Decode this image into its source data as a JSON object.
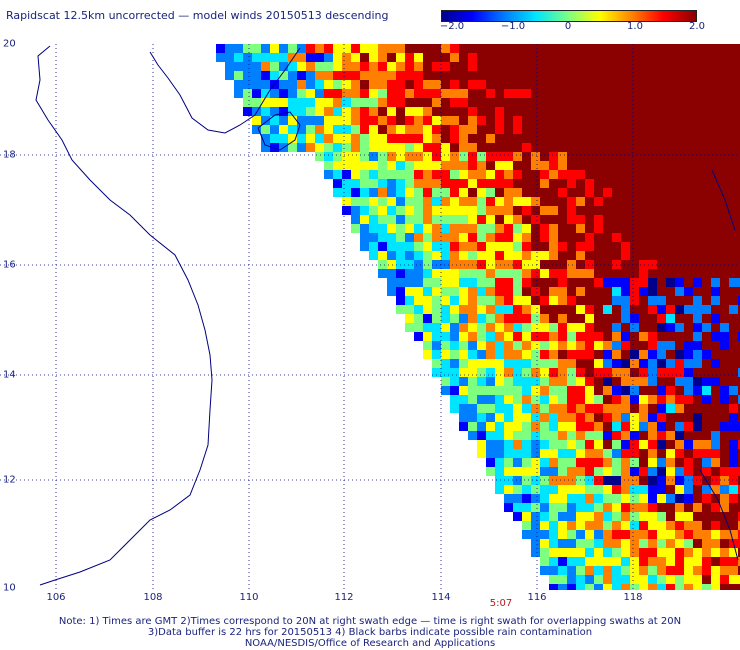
{
  "title": "Rapidscat 12.5km uncorrected — model winds 20150513 descending",
  "colorbar": {
    "ticks": [
      {
        "label": "−2.0",
        "value": -2.0
      },
      {
        "label": "−1.0",
        "value": -1.0
      },
      {
        "label": "0",
        "value": 0
      },
      {
        "label": "1.0",
        "value": 1.0
      },
      {
        "label": "2.0",
        "value": 2.0
      }
    ],
    "colors": [
      "#00008b",
      "#0000ff",
      "#0080ff",
      "#00e5ff",
      "#7fff7f",
      "#ffff00",
      "#ff8000",
      "#ff0000",
      "#8b0000"
    ]
  },
  "map": {
    "lon_range": [
      105.5,
      120
    ],
    "lat_range": [
      10,
      20
    ],
    "lon_labels": [
      "106",
      "108",
      "110",
      "112",
      "114",
      "116",
      "118"
    ],
    "lat_labels": [
      "20",
      "18",
      "16",
      "14",
      "12",
      "10"
    ],
    "time_label": "5:07"
  },
  "notes": [
    "Note: 1) Times are GMT 2)Times correspond to 20N at right swath edge — time is right swath for overlapping swaths at 20N",
    "3)Data buffer is 22 hrs for 20150513 4) Black barbs indicate possible rain contamination",
    "NOAA/NESDIS/Office of Research and Applications"
  ]
}
